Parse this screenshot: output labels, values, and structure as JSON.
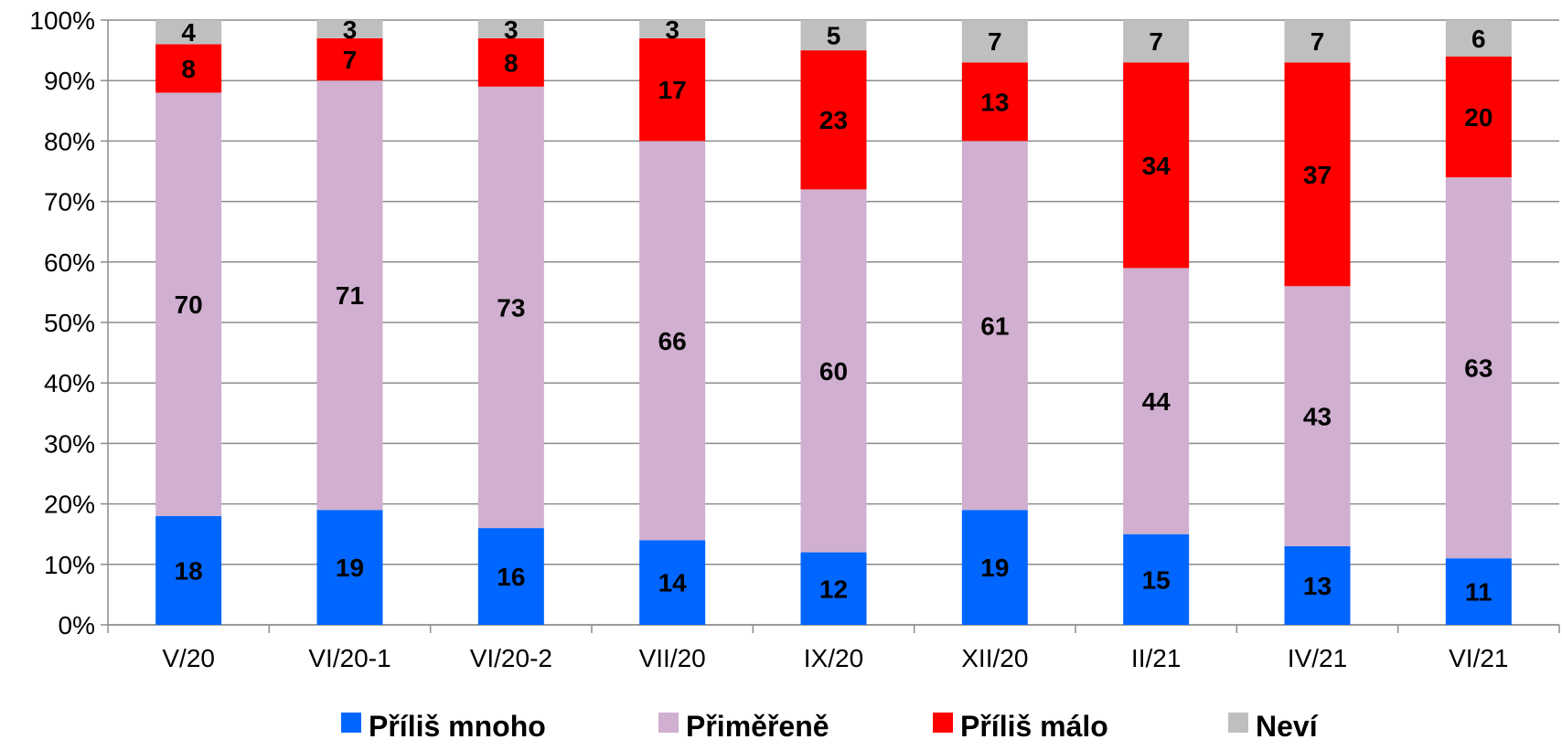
{
  "chart_data": {
    "type": "bar",
    "stacked": true,
    "percent_stacked": true,
    "categories": [
      "V/20",
      "VI/20-1",
      "VI/20-2",
      "VII/20",
      "IX/20",
      "XII/20",
      "II/21",
      "IV/21",
      "VI/21"
    ],
    "series": [
      {
        "name": "Příliš mnoho",
        "color": "#0066FF",
        "values": [
          18,
          19,
          16,
          14,
          12,
          19,
          15,
          13,
          11
        ]
      },
      {
        "name": "Přiměřeně",
        "color": "#D0AFD0",
        "values": [
          70,
          71,
          73,
          66,
          60,
          61,
          44,
          43,
          63
        ]
      },
      {
        "name": "Příliš málo",
        "color": "#FF0000",
        "values": [
          8,
          7,
          8,
          17,
          23,
          13,
          34,
          37,
          20
        ]
      },
      {
        "name": "Neví",
        "color": "#BFBFBF",
        "values": [
          4,
          3,
          3,
          3,
          5,
          7,
          7,
          7,
          6
        ]
      }
    ],
    "y_ticks": [
      "0%",
      "10%",
      "20%",
      "30%",
      "40%",
      "50%",
      "60%",
      "70%",
      "80%",
      "90%",
      "100%"
    ],
    "ylim": [
      0,
      100
    ],
    "grid": true,
    "legend_position": "bottom",
    "title": "",
    "xlabel": "",
    "ylabel": ""
  }
}
